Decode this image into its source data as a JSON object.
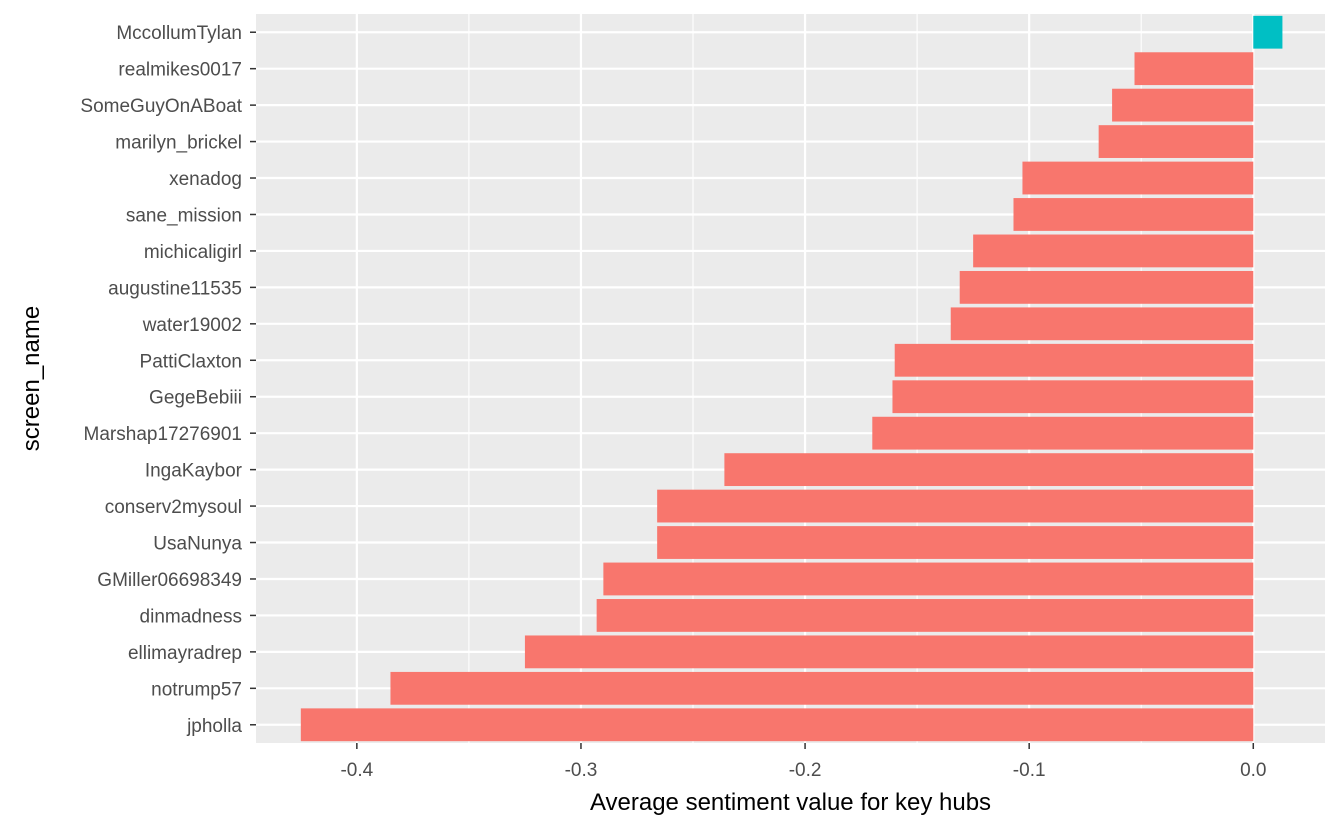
{
  "chart_data": {
    "type": "bar",
    "orientation": "horizontal",
    "xlabel": "Average sentiment value for key hubs",
    "ylabel": "screen_name",
    "xlim": [
      -0.445,
      0.032
    ],
    "xticks": [
      {
        "value": -0.4,
        "label": "-0.4"
      },
      {
        "value": -0.3,
        "label": "-0.3"
      },
      {
        "value": -0.2,
        "label": "-0.2"
      },
      {
        "value": -0.1,
        "label": "-0.1"
      },
      {
        "value": 0.0,
        "label": "0.0"
      }
    ],
    "grid": true,
    "legend": "none",
    "colors": {
      "negative": "#F8766D",
      "positive": "#00BFC4",
      "panel": "#EBEBEB",
      "grid": "#FFFFFF"
    },
    "categories": [
      "MccollumTylan",
      "realmikes0017",
      "SomeGuyOnABoat",
      "marilyn_brickel",
      "xenadog",
      "sane_mission",
      "michicaligirl",
      "augustine11535",
      "water19002",
      "PattiClaxton",
      "GegeBebiii",
      "Marshap17276901",
      "IngaKaybor",
      "conserv2mysoul",
      "UsaNunya",
      "GMiller06698349",
      "dinmadness",
      "ellimayradrep",
      "notrump57",
      "jpholla"
    ],
    "values": [
      0.013,
      -0.053,
      -0.063,
      -0.069,
      -0.103,
      -0.107,
      -0.125,
      -0.131,
      -0.135,
      -0.16,
      -0.161,
      -0.17,
      -0.236,
      -0.266,
      -0.266,
      -0.29,
      -0.293,
      -0.325,
      -0.385,
      -0.425
    ]
  }
}
